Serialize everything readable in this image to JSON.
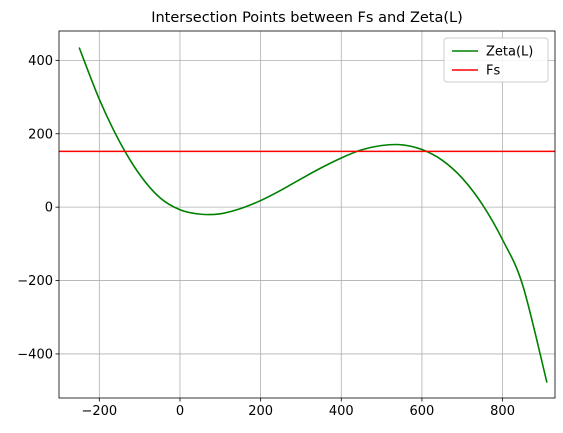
{
  "chart_data": {
    "type": "line",
    "title": "Intersection Points between Fs and Zeta(L)",
    "xlabel": "",
    "ylabel": "",
    "xlim": [
      -300,
      930
    ],
    "ylim": [
      -520,
      480
    ],
    "xticks": [
      -200,
      0,
      200,
      400,
      600,
      800
    ],
    "xtick_labels": [
      "−200",
      "0",
      "200",
      "400",
      "600",
      "800"
    ],
    "yticks": [
      -400,
      -200,
      0,
      200,
      400
    ],
    "ytick_labels": [
      "−400",
      "−200",
      "0",
      "200",
      "400"
    ],
    "grid": true,
    "legend_position": "top-right",
    "series": [
      {
        "name": "Zeta(L)",
        "color": "#008000",
        "x": [
          -250,
          -200,
          -150,
          -100,
          -50,
          0,
          50,
          100,
          150,
          200,
          250,
          300,
          350,
          400,
          450,
          500,
          550,
          600,
          650,
          700,
          750,
          800,
          850,
          910
        ],
        "y": [
          435,
          294,
          179,
          89,
          26,
          -7,
          -19,
          -18,
          -4,
          18,
          46,
          77,
          107,
          134,
          156,
          168,
          170,
          157,
          128,
          79,
          7,
          -89,
          -213,
          -478
        ]
      },
      {
        "name": "Fs",
        "color": "#ff0000",
        "x": [
          -300,
          930
        ],
        "y": [
          152,
          152
        ]
      }
    ]
  }
}
